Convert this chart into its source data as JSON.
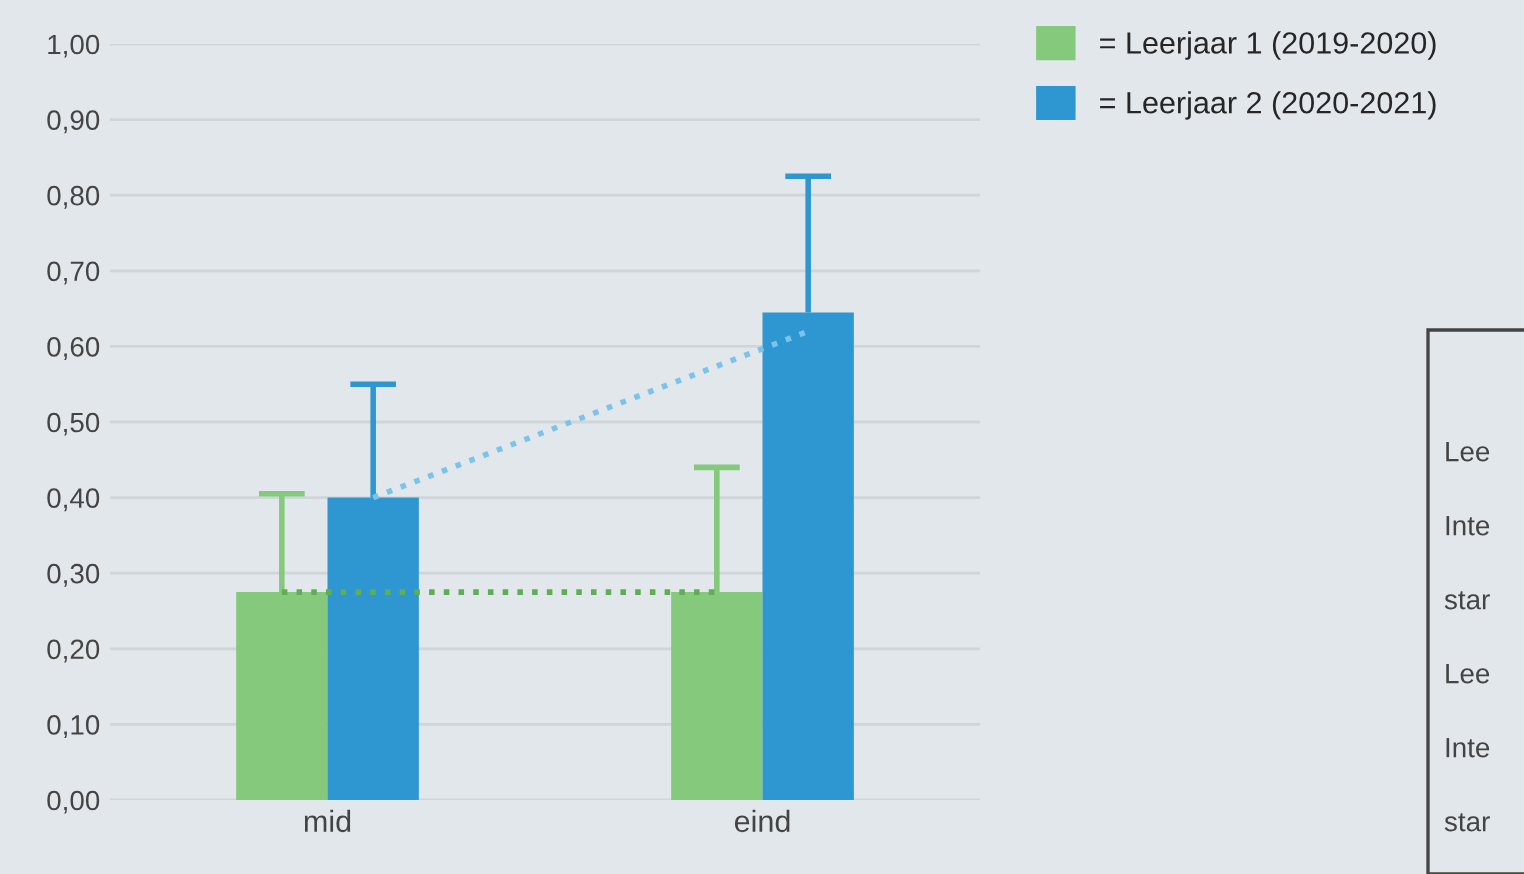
{
  "chart_data": {
    "type": "bar",
    "categories": [
      "mid",
      "eind"
    ],
    "series": [
      {
        "name": "= Leerjaar 1 (2019-2020)",
        "color": "#84c97c",
        "values": [
          0.275,
          0.275
        ],
        "errors": [
          [
            0.275,
            0.405
          ],
          [
            0.275,
            0.44
          ]
        ]
      },
      {
        "name": "= Leerjaar 2 (2020-2021)",
        "color": "#2e96d0",
        "values": [
          0.4,
          0.645
        ],
        "errors": [
          [
            0.4,
            0.55
          ],
          [
            0.645,
            0.825
          ]
        ]
      },
      {
        "type": "line",
        "color": "#5fae55",
        "line_style": "dotted",
        "values": [
          0.275,
          0.275
        ]
      },
      {
        "type": "line",
        "color": "#7cc3ec",
        "line_style": "dotted",
        "values": [
          0.4,
          0.62
        ]
      }
    ],
    "ylim": [
      0,
      1.0
    ],
    "yticks": [
      {
        "value": 0,
        "label": "0,00"
      },
      {
        "value": 0.1,
        "label": "0,10"
      },
      {
        "value": 0.2,
        "label": "0,20"
      },
      {
        "value": 0.3,
        "label": "0,30"
      },
      {
        "value": 0.4,
        "label": "0,40"
      },
      {
        "value": 0.5,
        "label": "0,50"
      },
      {
        "value": 0.6,
        "label": "0,60"
      },
      {
        "value": 0.7,
        "label": "0,70"
      },
      {
        "value": 0.8,
        "label": "0,80"
      },
      {
        "value": 0.9,
        "label": "0,90"
      },
      {
        "value": 1.0,
        "label": "1,00"
      }
    ],
    "grid": "y",
    "legend": "top right",
    "annotations": [
      "Lee",
      "Inte",
      "star",
      "Lee",
      "Inte",
      "star"
    ]
  }
}
